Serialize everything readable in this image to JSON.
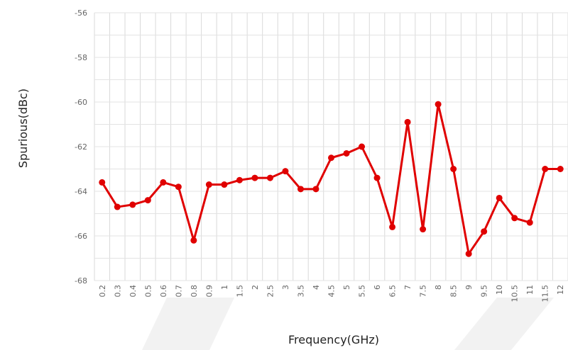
{
  "chart_data": {
    "type": "line",
    "title": "",
    "xlabel": "Frequency(GHz)",
    "ylabel": "Spurious(dBc)",
    "ylim": [
      -68,
      -56
    ],
    "yticks": [
      "-56",
      "-58",
      "-60",
      "-62",
      "-64",
      "-66",
      "-68"
    ],
    "categories": [
      "0.2",
      "0.3",
      "0.4",
      "0.5",
      "0.6",
      "0.7",
      "0.8",
      "0.9",
      "1",
      "1.5",
      "2",
      "2.5",
      "3",
      "3.5",
      "4",
      "4.5",
      "5",
      "5.5",
      "6",
      "6.5",
      "7",
      "7.5",
      "8",
      "8.5",
      "9",
      "9.5",
      "10",
      "10.5",
      "11",
      "11.5",
      "12"
    ],
    "series": [
      {
        "color": "#e00000",
        "values": [
          -63.6,
          -64.7,
          -64.6,
          -64.4,
          -63.6,
          -63.8,
          -66.2,
          -63.7,
          -63.7,
          -63.5,
          -63.4,
          -63.4,
          -63.1,
          -63.9,
          -63.9,
          -62.5,
          -62.3,
          -62.0,
          -63.4,
          -65.6,
          -60.9,
          -65.7,
          -60.1,
          -63.0,
          -66.8,
          -65.8,
          -64.3,
          -65.2,
          -65.4,
          -63.0,
          -63.0
        ]
      }
    ],
    "grid": true,
    "legend": "none"
  }
}
